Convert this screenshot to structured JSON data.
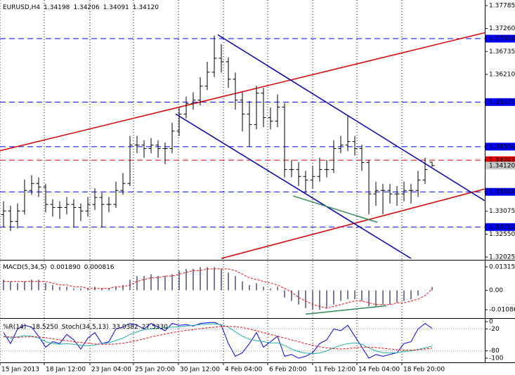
{
  "chart_data": [
    {
      "type": "ohlc",
      "title": "EURUSD,H4",
      "color": "#000000",
      "open": [
        1.33,
        1.3308,
        1.3284,
        1.3308,
        1.3355,
        1.3371,
        1.3363,
        1.3323,
        1.3316,
        1.3316,
        1.3323,
        1.3316,
        1.3308,
        1.3323,
        1.3339,
        1.3323,
        1.3323,
        1.3355,
        1.3371,
        1.3459,
        1.3459,
        1.3451,
        1.3459,
        1.3451,
        1.3451,
        1.3491,
        1.353,
        1.3554,
        1.3562,
        1.3594,
        1.3626,
        1.3658,
        1.365,
        1.361,
        1.3562,
        1.353,
        1.3506,
        1.3578,
        1.3522,
        1.3514,
        1.3546,
        1.3403,
        1.3403,
        1.3387,
        1.3379,
        1.3387,
        1.3403,
        1.3403,
        1.3451,
        1.3459,
        1.3467,
        1.3451,
        1.3419,
        1.3347,
        1.3355,
        1.3355,
        1.3347,
        1.3347,
        1.3355,
        1.3355,
        1.3379,
        1.34198
      ],
      "high": [
        1.333,
        1.332,
        1.3325,
        1.338,
        1.339,
        1.3385,
        1.337,
        1.3335,
        1.333,
        1.334,
        1.3335,
        1.3325,
        1.334,
        1.336,
        1.335,
        1.334,
        1.3375,
        1.3395,
        1.348,
        1.348,
        1.347,
        1.3475,
        1.347,
        1.3465,
        1.351,
        1.3545,
        1.357,
        1.358,
        1.3615,
        1.365,
        1.371,
        1.369,
        1.366,
        1.3625,
        1.358,
        1.356,
        1.3595,
        1.359,
        1.3545,
        1.3575,
        1.3555,
        1.3425,
        1.342,
        1.34,
        1.341,
        1.343,
        1.3425,
        1.347,
        1.348,
        1.3525,
        1.348,
        1.346,
        1.3425,
        1.3375,
        1.337,
        1.337,
        1.3365,
        1.3375,
        1.337,
        1.34,
        1.343,
        1.34206
      ],
      "low": [
        1.327,
        1.3262,
        1.3268,
        1.33,
        1.3345,
        1.334,
        1.3305,
        1.3295,
        1.329,
        1.33,
        1.327,
        1.3285,
        1.3295,
        1.331,
        1.327,
        1.3305,
        1.3315,
        1.3345,
        1.3365,
        1.344,
        1.343,
        1.344,
        1.343,
        1.3415,
        1.344,
        1.348,
        1.352,
        1.354,
        1.355,
        1.3585,
        1.3615,
        1.3625,
        1.359,
        1.354,
        1.349,
        1.3455,
        1.3495,
        1.35,
        1.3495,
        1.35,
        1.3385,
        1.3385,
        1.3365,
        1.335,
        1.336,
        1.3375,
        1.3385,
        1.3395,
        1.344,
        1.3445,
        1.3435,
        1.34,
        1.33,
        1.332,
        1.33,
        1.3325,
        1.332,
        1.333,
        1.3325,
        1.334,
        1.337,
        1.34091
      ],
      "close": [
        1.3308,
        1.3284,
        1.3308,
        1.3355,
        1.3371,
        1.3363,
        1.3323,
        1.3316,
        1.3316,
        1.3323,
        1.3316,
        1.3308,
        1.3323,
        1.3339,
        1.3323,
        1.3323,
        1.3355,
        1.3371,
        1.3459,
        1.3459,
        1.3451,
        1.3459,
        1.3451,
        1.3451,
        1.3491,
        1.353,
        1.3554,
        1.3562,
        1.3594,
        1.3626,
        1.3658,
        1.365,
        1.361,
        1.3562,
        1.353,
        1.3506,
        1.3578,
        1.3522,
        1.3514,
        1.3546,
        1.3403,
        1.3403,
        1.3387,
        1.3379,
        1.3387,
        1.3403,
        1.3403,
        1.3451,
        1.3459,
        1.3467,
        1.3451,
        1.3419,
        1.3347,
        1.3355,
        1.3355,
        1.3347,
        1.3347,
        1.3355,
        1.3355,
        1.3379,
        1.3403,
        1.3412
      ],
      "xlim": [
        0,
        69
      ],
      "xticks": [
        {
          "value": 0,
          "label": "15 Jan 2013"
        },
        {
          "value": 6.3,
          "label": "18 Jan 12:00"
        },
        {
          "value": 12.8,
          "label": "23 Jan 04:00"
        },
        {
          "value": 19.0,
          "label": "25 Jan 20:00"
        },
        {
          "value": 25.4,
          "label": "30 Jan 12:00"
        },
        {
          "value": 31.8,
          "label": "4 Feb 04:00"
        },
        {
          "value": 38.1,
          "label": "6 Feb 20:00"
        },
        {
          "value": 44.5,
          "label": "11 Feb 12:00"
        },
        {
          "value": 50.8,
          "label": "14 Feb 04:00"
        },
        {
          "value": 57.2,
          "label": "18 Feb 20:00"
        }
      ],
      "ylim": [
        1.32025,
        1.37785
      ],
      "yticks": [
        1.37785,
        {
          "value": 1.3726,
          "label": "1.37260"
        },
        1.36735,
        {
          "value": 1.3621,
          "label": "1.36210"
        },
        1.33075,
        {
          "value": 1.3255,
          "label": "1.32550"
        },
        1.32025
      ],
      "levels": [
        {
          "value": 1.37028,
          "color": "#0000ff"
        },
        {
          "value": 1.35575,
          "color": "#0000ff"
        },
        {
          "value": 1.34554,
          "color": "#0000ff"
        },
        {
          "value": 1.34243,
          "color": "#e00000"
        },
        {
          "value": 1.33518,
          "color": "#0000ff"
        },
        {
          "value": 1.32712,
          "color": "#0000ff"
        }
      ],
      "current_price": {
        "value": 1.3412,
        "label": "1.34120"
      },
      "trendlines": [
        {
          "color": "#e00000",
          "points": [
            [
              0,
              1.3446
            ],
            [
              69,
              1.37164
            ]
          ]
        },
        {
          "color": "#e00000",
          "points": [
            [
              31.5,
              1.31993
            ],
            [
              69,
              1.33585
            ]
          ]
        },
        {
          "color": "#0000c0",
          "points": [
            [
              31,
              1.37117
            ],
            [
              69,
              1.33314
            ]
          ]
        },
        {
          "color": "#0000c0",
          "points": [
            [
              25,
              1.35303
            ],
            [
              58.5,
              1.31993
            ]
          ]
        },
        {
          "color": "#2e8b57",
          "points": [
            [
              41.7,
              1.33426
            ],
            [
              53.7,
              1.32821
            ]
          ]
        }
      ]
    },
    {
      "type": "macd",
      "title": "MACD(5,34,5)",
      "readout": [
        {
          "value": 0.00189,
          "label": "0.001890"
        },
        0.000816
      ],
      "ylim": [
        -0.0152,
        0.0159
      ],
      "yticks": [
        0.013156,
        {
          "value": 0,
          "label": "0.00"
        },
        -0.010864
      ],
      "series": [
        {
          "style": "histogram",
          "color": "#505080",
          "values": [
            0.006,
            0.005,
            0.004,
            0.005,
            0.006,
            0.006,
            0.004,
            0.003,
            0.002,
            0.002,
            0.001,
            0.001,
            0.001,
            0.002,
            0.001,
            0.001,
            0.002,
            0.003,
            0.006,
            0.008,
            0.008,
            0.009,
            0.008,
            0.008,
            0.009,
            0.011,
            0.012,
            0.012,
            0.013,
            0.013,
            0.013,
            0.012,
            0.01,
            0.008,
            0.005,
            0.003,
            0.004,
            0.002,
            0.001,
            0.002,
            -0.004,
            -0.006,
            -0.008,
            -0.01,
            -0.011,
            -0.011,
            -0.01,
            -0.008,
            -0.006,
            -0.005,
            -0.005,
            -0.006,
            -0.009,
            -0.009,
            -0.008,
            -0.008,
            -0.007,
            -0.006,
            -0.005,
            -0.003,
            0.0,
            0.00189
          ]
        },
        {
          "style": "dashed",
          "color": "#ff0000",
          "values": [
            0.005,
            0.005,
            0.005,
            0.005,
            0.005,
            0.005,
            0.005,
            0.004,
            0.003,
            0.003,
            0.002,
            0.002,
            0.001,
            0.001,
            0.001,
            0.001,
            0.002,
            0.002,
            0.003,
            0.005,
            0.006,
            0.007,
            0.007,
            0.008,
            0.008,
            0.009,
            0.01,
            0.011,
            0.011,
            0.012,
            0.012,
            0.012,
            0.012,
            0.011,
            0.009,
            0.007,
            0.006,
            0.005,
            0.004,
            0.003,
            0.001,
            -0.001,
            -0.004,
            -0.006,
            -0.008,
            -0.009,
            -0.01,
            -0.009,
            -0.008,
            -0.007,
            -0.006,
            -0.006,
            -0.007,
            -0.008,
            -0.008,
            -0.008,
            -0.007,
            -0.007,
            -0.006,
            -0.005,
            -0.003,
            0.000816
          ]
        }
      ],
      "trendlines": [
        {
          "color": "#2e8b57",
          "points": [
            [
              43.5,
              -0.01339
            ],
            [
              55,
              -0.00866
            ]
          ]
        }
      ]
    },
    {
      "type": "oscillator",
      "title": "%R(14)",
      "readout": [
        {
          "value": -18.525,
          "label": "-18.5250"
        }
      ],
      "title2": "Stoch(34,5,13)",
      "readout2": [
        33.0382,
        {
          "value": 27.533,
          "label": "27.5330"
        }
      ],
      "ylim": [
        -100,
        0
      ],
      "yticks": [
        0,
        -20,
        -80,
        -100
      ],
      "levels": [
        -20,
        -80
      ],
      "y2lim": [
        0,
        100
      ],
      "series": [
        {
          "style": "solid",
          "color": "#0000ff",
          "values": [
            -30,
            -60,
            -20,
            -10,
            -15,
            -40,
            -70,
            -55,
            -60,
            -35,
            -50,
            -75,
            -45,
            -30,
            -60,
            -55,
            -20,
            -15,
            -5,
            -10,
            -20,
            -5,
            -15,
            -25,
            -5,
            -10,
            -8,
            -12,
            -5,
            -3,
            -2,
            -10,
            -60,
            -95,
            -85,
            -60,
            -30,
            -70,
            -55,
            -40,
            -95,
            -90,
            -100,
            -95,
            -85,
            -60,
            -50,
            -20,
            -25,
            -10,
            -40,
            -70,
            -100,
            -90,
            -95,
            -90,
            -85,
            -60,
            -55,
            -20,
            -5,
            -18.525
          ]
        },
        {
          "style": "solid",
          "color": "#20b2aa",
          "axis": "y2",
          "values": [
            60,
            55,
            58,
            62,
            60,
            55,
            45,
            40,
            38,
            40,
            38,
            35,
            34,
            36,
            40,
            42,
            48,
            55,
            65,
            72,
            78,
            80,
            82,
            83,
            85,
            86,
            88,
            90,
            92,
            93,
            94,
            92,
            85,
            72,
            60,
            52,
            48,
            45,
            42,
            42,
            35,
            25,
            18,
            14,
            12,
            14,
            20,
            28,
            35,
            40,
            42,
            38,
            28,
            20,
            15,
            14,
            15,
            18,
            20,
            24,
            28,
            33.0382
          ]
        },
        {
          "style": "dashed",
          "color": "#ff0000",
          "axis": "y2",
          "values": [
            58,
            58,
            57,
            58,
            58,
            58,
            56,
            53,
            50,
            48,
            45,
            43,
            41,
            39,
            38,
            38,
            39,
            41,
            44,
            48,
            53,
            58,
            62,
            66,
            70,
            73,
            76,
            78,
            81,
            83,
            85,
            87,
            87,
            86,
            84,
            80,
            75,
            70,
            65,
            60,
            55,
            50,
            45,
            40,
            35,
            31,
            28,
            26,
            25,
            26,
            28,
            30,
            30,
            29,
            27,
            25,
            23,
            22,
            22,
            23,
            25,
            27.533
          ]
        }
      ]
    }
  ]
}
